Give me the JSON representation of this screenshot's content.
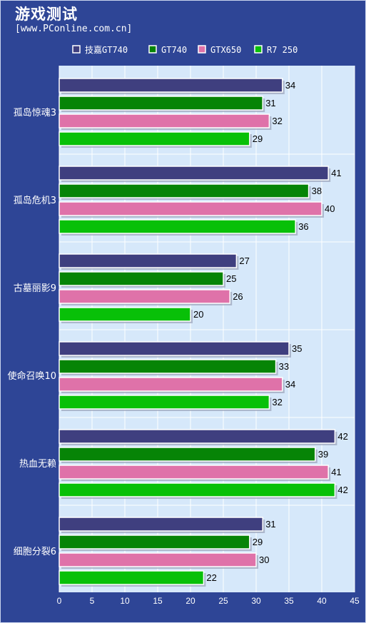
{
  "header": {
    "title": "游戏测试",
    "subtitle": "[www.PConline.com.cn]"
  },
  "colors": {
    "background": "#2e4596",
    "plot_bg": "#d6e8fa",
    "grid": "#ffffff"
  },
  "chart_data": {
    "type": "bar",
    "orientation": "horizontal",
    "title": "游戏测试",
    "categories": [
      "孤岛惊魂3",
      "孤岛危机3",
      "古墓丽影9",
      "使命召唤10",
      "热血无赖",
      "细胞分裂6"
    ],
    "series": [
      {
        "name": "技嘉GT740",
        "color": "#3f3f7f",
        "values": [
          34,
          41,
          27,
          35,
          42,
          31
        ]
      },
      {
        "name": "GT740",
        "color": "#068406",
        "values": [
          31,
          38,
          25,
          33,
          39,
          29
        ]
      },
      {
        "name": "GTX650",
        "color": "#df72a9",
        "values": [
          32,
          40,
          26,
          34,
          41,
          30
        ]
      },
      {
        "name": "R7 250",
        "color": "#08c008",
        "values": [
          29,
          36,
          20,
          32,
          42,
          22
        ]
      }
    ],
    "xlim": [
      0,
      45
    ],
    "xticks": [
      0,
      5,
      10,
      15,
      20,
      25,
      30,
      35,
      40,
      45
    ],
    "legend_position": "top-right",
    "data_labels": true,
    "grid": true
  }
}
